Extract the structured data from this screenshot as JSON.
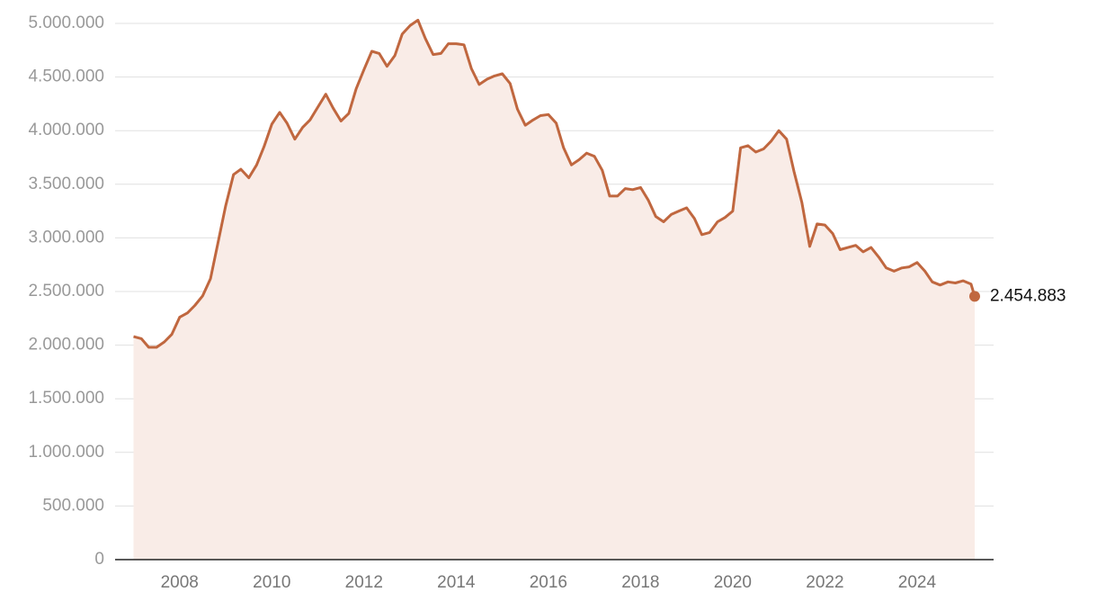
{
  "chart_data": {
    "type": "area",
    "x": [
      2007.0,
      2007.17,
      2007.33,
      2007.5,
      2007.67,
      2007.83,
      2008.0,
      2008.17,
      2008.33,
      2008.5,
      2008.67,
      2008.83,
      2009.0,
      2009.17,
      2009.33,
      2009.5,
      2009.67,
      2009.83,
      2010.0,
      2010.17,
      2010.33,
      2010.5,
      2010.67,
      2010.83,
      2011.0,
      2011.17,
      2011.33,
      2011.5,
      2011.67,
      2011.83,
      2012.0,
      2012.17,
      2012.33,
      2012.5,
      2012.67,
      2012.83,
      2013.0,
      2013.17,
      2013.33,
      2013.5,
      2013.67,
      2013.83,
      2014.0,
      2014.17,
      2014.33,
      2014.5,
      2014.67,
      2014.83,
      2015.0,
      2015.17,
      2015.33,
      2015.5,
      2015.67,
      2015.83,
      2016.0,
      2016.17,
      2016.33,
      2016.5,
      2016.67,
      2016.83,
      2017.0,
      2017.17,
      2017.33,
      2017.5,
      2017.67,
      2017.83,
      2018.0,
      2018.17,
      2018.33,
      2018.5,
      2018.67,
      2018.83,
      2019.0,
      2019.17,
      2019.33,
      2019.5,
      2019.67,
      2019.83,
      2020.0,
      2020.17,
      2020.33,
      2020.5,
      2020.67,
      2020.83,
      2021.0,
      2021.17,
      2021.33,
      2021.5,
      2021.67,
      2021.83,
      2022.0,
      2022.17,
      2022.33,
      2022.5,
      2022.67,
      2022.83,
      2023.0,
      2023.17,
      2023.33,
      2023.5,
      2023.67,
      2023.83,
      2024.0,
      2024.17,
      2024.33,
      2024.5,
      2024.67,
      2024.83,
      2025.0,
      2025.17,
      2025.25
    ],
    "values": [
      2080000,
      2060000,
      1980000,
      1980000,
      2030000,
      2100000,
      2260000,
      2300000,
      2370000,
      2460000,
      2620000,
      2950000,
      3300000,
      3590000,
      3640000,
      3560000,
      3680000,
      3850000,
      4060000,
      4170000,
      4070000,
      3920000,
      4030000,
      4100000,
      4220000,
      4340000,
      4210000,
      4090000,
      4160000,
      4390000,
      4570000,
      4740000,
      4720000,
      4600000,
      4700000,
      4900000,
      4980000,
      5030000,
      4860000,
      4710000,
      4720000,
      4810000,
      4810000,
      4800000,
      4580000,
      4430000,
      4480000,
      4510000,
      4530000,
      4440000,
      4200000,
      4050000,
      4100000,
      4140000,
      4150000,
      4070000,
      3840000,
      3680000,
      3730000,
      3790000,
      3760000,
      3630000,
      3390000,
      3390000,
      3460000,
      3450000,
      3470000,
      3350000,
      3200000,
      3150000,
      3220000,
      3250000,
      3280000,
      3180000,
      3030000,
      3050000,
      3150000,
      3190000,
      3250000,
      3840000,
      3860000,
      3800000,
      3830000,
      3900000,
      4000000,
      3920000,
      3620000,
      3330000,
      2920000,
      3130000,
      3120000,
      3040000,
      2890000,
      2910000,
      2930000,
      2870000,
      2910000,
      2820000,
      2720000,
      2690000,
      2720000,
      2730000,
      2770000,
      2690000,
      2590000,
      2560000,
      2590000,
      2580000,
      2600000,
      2570000,
      2454883
    ],
    "value_labels": [
      null,
      null,
      null,
      null,
      null,
      null,
      null,
      null,
      null,
      null,
      null,
      null,
      null,
      null,
      null,
      null,
      null,
      null,
      null,
      null,
      null,
      null,
      null,
      null,
      null,
      null,
      null,
      null,
      null,
      null,
      null,
      null,
      null,
      null,
      null,
      null,
      null,
      null,
      null,
      null,
      null,
      null,
      null,
      null,
      null,
      null,
      null,
      null,
      null,
      null,
      null,
      null,
      null,
      null,
      null,
      null,
      null,
      null,
      null,
      null,
      null,
      null,
      null,
      null,
      null,
      null,
      null,
      null,
      null,
      null,
      null,
      null,
      null,
      null,
      null,
      null,
      null,
      null,
      null,
      null,
      null,
      null,
      null,
      null,
      null,
      null,
      null,
      null,
      null,
      null,
      null,
      null,
      null,
      null,
      null,
      null,
      null,
      null,
      null,
      null,
      null,
      null,
      null,
      null,
      null,
      null,
      null,
      null,
      null,
      null,
      "2.454.883"
    ],
    "color": "#c0673f",
    "area_color": "#f9ece7",
    "xlim": [
      2006.6,
      2025.66
    ],
    "xticks": [
      2008,
      2010,
      2012,
      2014,
      2016,
      2018,
      2020,
      2022,
      2024
    ],
    "ylim": [
      0,
      5000000
    ],
    "yticks": [
      0,
      {
        "value": 500000,
        "label": "500.000"
      },
      {
        "value": 1000000,
        "label": "1.000.000"
      },
      {
        "value": 1500000,
        "label": "1.500.000"
      },
      {
        "value": 2000000,
        "label": "2.000.000"
      },
      {
        "value": 2500000,
        "label": "2.500.000"
      },
      {
        "value": 3000000,
        "label": "3.000.000"
      },
      {
        "value": 3500000,
        "label": "3.500.000"
      },
      {
        "value": 4000000,
        "label": "4.000.000"
      },
      {
        "value": 4500000,
        "label": "4.500.000"
      },
      {
        "value": 5000000,
        "label": "5.000.000"
      }
    ],
    "grid": true
  }
}
